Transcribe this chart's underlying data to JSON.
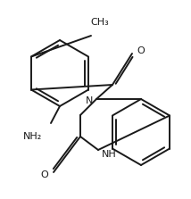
{
  "bg_color": "#ffffff",
  "line_color": "#1a1a1a",
  "line_width": 1.4,
  "figsize": [
    2.14,
    2.23
  ],
  "dpi": 100,
  "labels": {
    "NH2": "NH₂",
    "O1": "O",
    "N": "N",
    "O2": "O",
    "NH": "NH",
    "CH3": "CH₃"
  },
  "label_fontsize": 8.0
}
